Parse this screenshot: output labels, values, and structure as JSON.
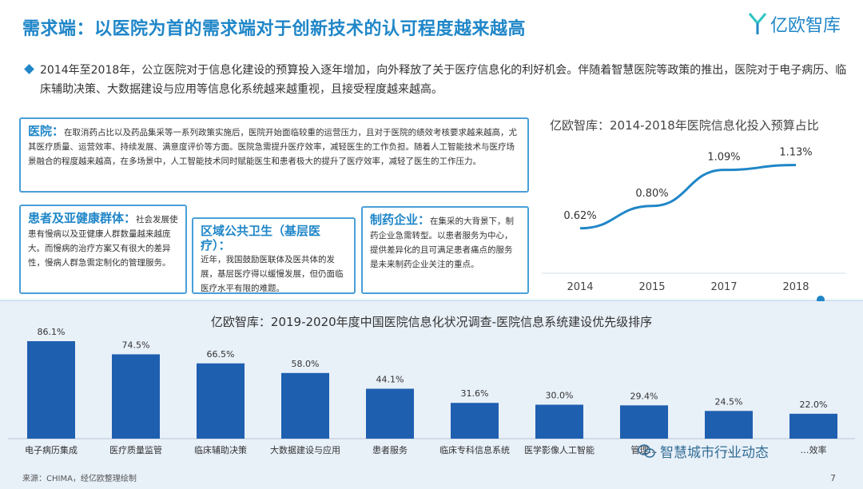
{
  "header": {
    "title": "需求端：以医院为首的需求端对于创新技术的认可程度越来越高",
    "logo_text": "亿欧智库"
  },
  "intro": "2014年至2018年，公立医院对于信息化建设的预算投入逐年增加，向外释放了关于医疗信息化的利好机会。伴随着智慧医院等政策的推出，医院对于电子病历、临床辅助决策、大数据建设与应用等信息化系统越来越重视，且接受程度越来越高。",
  "boxes": {
    "hospital": {
      "head": "医院：",
      "text": "在取消药占比以及药品集采等一系列政策实施后，医院开始面临较重的运营压力，且对于医院的绩效考核要求越来越高，尤其医疗质量、运营效率、持续发展、满意度评价等方面。医院急需提升医疗效率，减轻医生的工作负担。随着人工智能技术与医疗场景融合的程度越来越高，在多场景中，人工智能技术同时赋能医生和患者极大的提升了医疗效率，减轻了医生的工作压力。"
    },
    "patients": {
      "head": "患者及亚健康群体：",
      "text": "社会发展使患有慢病以及亚健康人群数量越来越庞大。而慢病的治疗方案又有很大的差异性，慢病人群急需定制化的管理服务。"
    },
    "public_health": {
      "head": "区域公共卫生（基层医疗）：",
      "text": "近年，我国鼓励医联体及医共体的发展，基层医疗得以缓慢发展，但仍面临医疗水平有限的难题。"
    },
    "pharma": {
      "head": "制药企业：",
      "text": "在集采的大背景下，制药企业急需转型。以患者服务为中心，提供差异化的且可满足患者痛点的服务是未来制药企业关注的重点。"
    }
  },
  "line_chart_title": "亿欧智库：2014-2018年医院信息化投入预算占比",
  "bar_chart_title": "亿欧智库：2019-2020年度中国医院信息化状况调查-医院信息系统建设优先级排序",
  "source": "来源：CHIMA，经亿欧整理绘制",
  "page_number": "7",
  "watermark": "智慧城市行业动态",
  "colors": {
    "accent": "#1f86c8",
    "bar": "#1f5fb0",
    "panel": "#e8f0f8"
  },
  "chart_data": [
    {
      "type": "line",
      "title": "亿欧智库：2014-2018年医院信息化投入预算占比",
      "x": [
        "2014",
        "2015",
        "2017",
        "2018"
      ],
      "values": [
        0.62,
        0.8,
        1.09,
        1.13
      ],
      "labels": [
        "0.62%",
        "0.80%",
        "1.09%",
        "1.13%"
      ],
      "ylim": [
        0.4,
        1.3
      ]
    },
    {
      "type": "bar",
      "title": "亿欧智库：2019-2020年度中国医院信息化状况调查-医院信息系统建设优先级排序",
      "categories": [
        "电子病历集成",
        "医疗质量监管",
        "临床辅助决策",
        "大数据建设与应用",
        "患者服务",
        "临床专科信息系统",
        "医学影像人工智能",
        "管理…",
        "…",
        "…效率"
      ],
      "values": [
        86.1,
        74.5,
        66.5,
        58.0,
        44.1,
        31.6,
        30.0,
        29.4,
        24.5,
        22.0
      ],
      "labels": [
        "86.1%",
        "74.5%",
        "66.5%",
        "58.0%",
        "44.1%",
        "31.6%",
        "30.0%",
        "29.4%",
        "24.5%",
        "22.0%"
      ],
      "ylim": [
        0,
        100
      ]
    }
  ]
}
